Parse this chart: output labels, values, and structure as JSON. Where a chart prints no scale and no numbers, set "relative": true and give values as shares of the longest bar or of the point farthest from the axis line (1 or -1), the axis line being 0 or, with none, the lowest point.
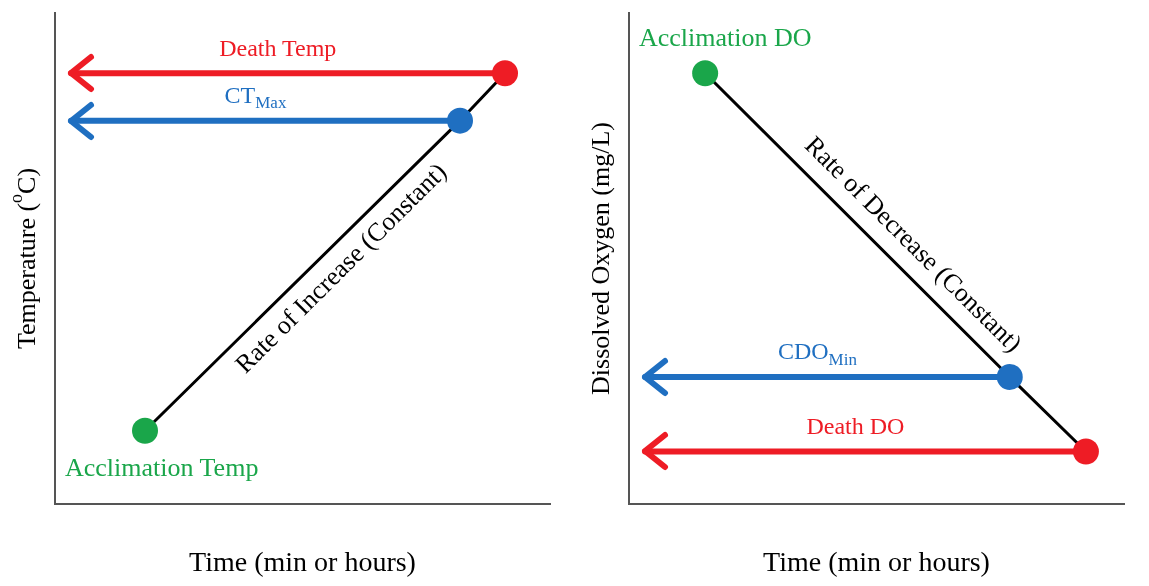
{
  "chart_data": [
    {
      "type": "line",
      "relative": true,
      "xlabel": "Time (min or hours)",
      "ylabel": "Temperature ($^{o}$C)",
      "categories": [
        null,
        null,
        null,
        null,
        null,
        null,
        null,
        null,
        null,
        null,
        null,
        null
      ],
      "marker": "circle",
      "series": [
        {
          "name": "Rate of Increase (Constant)",
          "color": "#000000",
          "colors": [
            null,
            null,
            "#1aa64a",
            null,
            null,
            null,
            null,
            null,
            null,
            "#1f6fc1",
            "#ee1c25",
            null
          ],
          "values": [
            null,
            null,
            0.17,
            null,
            null,
            null,
            null,
            null,
            null,
            0.89,
            1,
            null
          ]
        }
      ],
      "ref_lines": [
        {
          "axis": "y",
          "value": 1,
          "label": "Death Temp",
          "color": "#ee1c25"
        },
        {
          "axis": "y",
          "value": 0.89,
          "label": "CT$_{Max}$",
          "color": "#1f6fc1"
        }
      ],
      "annotations": [
        {
          "text": "Acclimation Temp",
          "y": 0.17
        }
      ]
    },
    {
      "type": "line",
      "relative": true,
      "xlabel": "Time (min or hours)",
      "ylabel": "Dissolved Oxygen (mg/L)",
      "categories": [
        null,
        null,
        null,
        null,
        null,
        null,
        null,
        null,
        null,
        null,
        null,
        null,
        null,
        null
      ],
      "marker": "circle",
      "series": [
        {
          "name": "Rate of Decrease (Constant)",
          "color": "#000000",
          "colors": [
            null,
            null,
            "#1aa64a",
            null,
            null,
            null,
            null,
            null,
            null,
            null,
            "#1f6fc1",
            null,
            "#ee1c25",
            null
          ],
          "values": [
            null,
            null,
            1,
            null,
            null,
            null,
            null,
            null,
            null,
            null,
            0.295,
            null,
            0.122,
            null
          ]
        }
      ],
      "ref_lines": [
        {
          "axis": "y",
          "value": 0.295,
          "label": "CDO$_{Min}$",
          "color": "#1f6fc1"
        },
        {
          "axis": "y",
          "value": 0.122,
          "label": "Death DO",
          "color": "#ee1c25"
        }
      ],
      "annotations": [
        "Acclimation DO"
      ]
    }
  ]
}
